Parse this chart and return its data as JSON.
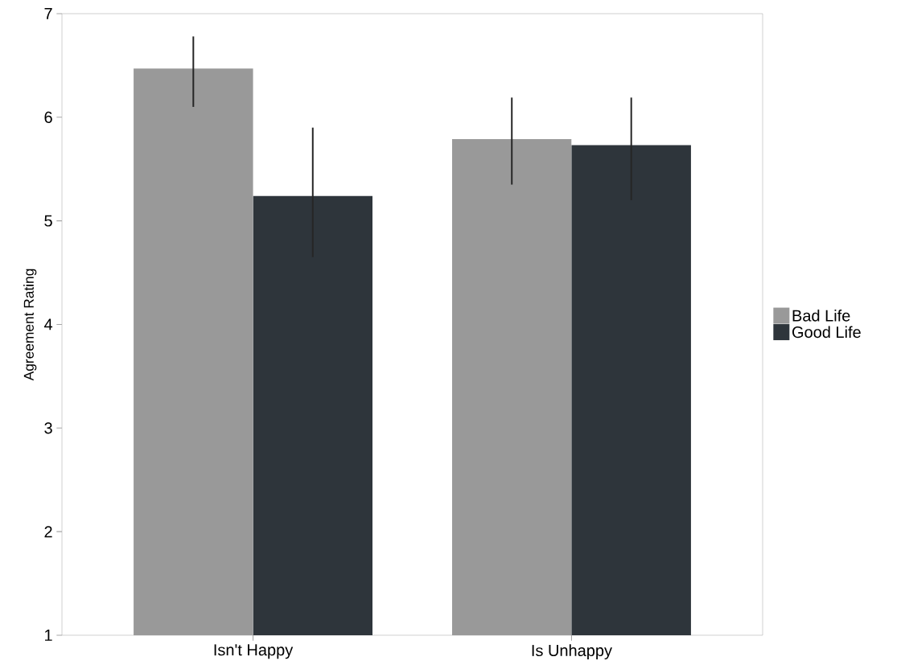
{
  "chart_data": {
    "type": "bar",
    "ylabel": "Agreement Rating",
    "categories": [
      "Isn't Happy",
      "Is Unhappy"
    ],
    "series": [
      {
        "name": "Bad Life",
        "color": "#999999",
        "values": [
          6.47,
          5.79
        ],
        "errors": [
          [
            6.1,
            6.78
          ],
          [
            5.35,
            6.19
          ]
        ]
      },
      {
        "name": "Good Life",
        "color": "#2e353b",
        "values": [
          5.24,
          5.73
        ],
        "errors": [
          [
            4.65,
            5.9
          ],
          [
            5.2,
            6.19
          ]
        ]
      }
    ],
    "ylim": [
      1,
      7
    ],
    "yticks": [
      1,
      2,
      3,
      4,
      5,
      6,
      7
    ],
    "grid": false,
    "legend": "right"
  }
}
